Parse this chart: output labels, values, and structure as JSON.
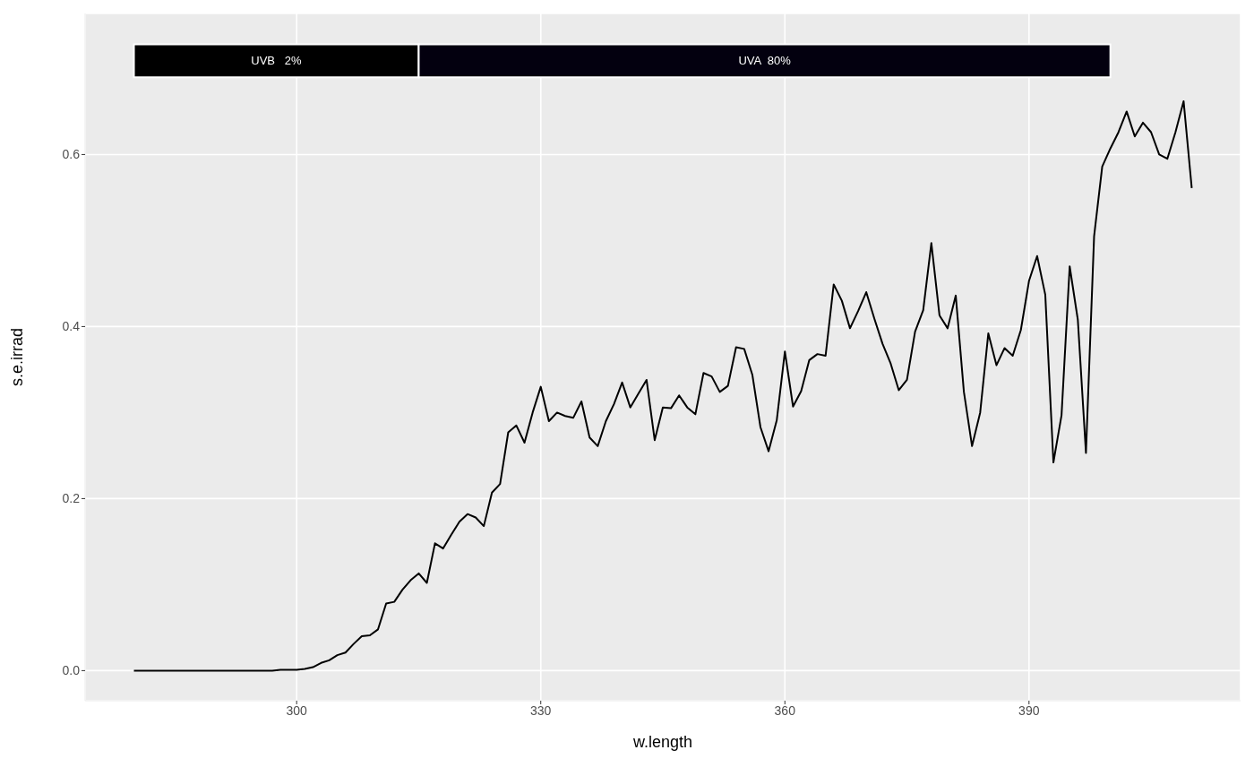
{
  "chart_data": {
    "type": "line",
    "xlabel": "w.length",
    "ylabel": "s.e.irrad",
    "x": [
      280,
      281,
      282,
      283,
      284,
      285,
      286,
      287,
      288,
      289,
      290,
      291,
      292,
      293,
      294,
      295,
      296,
      297,
      298,
      299,
      300,
      301,
      302,
      303,
      304,
      305,
      306,
      307,
      308,
      309,
      310,
      311,
      312,
      313,
      314,
      315,
      316,
      317,
      318,
      319,
      320,
      321,
      322,
      323,
      324,
      325,
      326,
      327,
      328,
      329,
      330,
      331,
      332,
      333,
      334,
      335,
      336,
      337,
      338,
      339,
      340,
      341,
      342,
      343,
      344,
      345,
      346,
      347,
      348,
      349,
      350,
      351,
      352,
      353,
      354,
      355,
      356,
      357,
      358,
      359,
      360,
      361,
      362,
      363,
      364,
      365,
      366,
      367,
      368,
      369,
      370,
      371,
      372,
      373,
      374,
      375,
      376,
      377,
      378,
      379,
      380,
      381,
      382,
      383,
      384,
      385,
      386,
      387,
      388,
      389,
      390,
      391,
      392,
      393,
      394,
      395,
      396,
      397,
      398,
      399,
      400,
      401,
      402,
      403,
      404,
      405,
      406,
      407,
      408,
      409,
      410
    ],
    "series": [
      {
        "color": "#000000",
        "values": [
          0,
          0,
          0,
          0,
          0,
          0,
          0,
          0,
          0,
          0,
          0,
          0,
          0,
          0,
          0,
          0,
          0,
          0,
          0.001,
          0.001,
          0.001,
          0.002,
          0.004,
          0.009,
          0.012,
          0.018,
          0.021,
          0.031,
          0.04,
          0.041,
          0.048,
          0.078,
          0.08,
          0.094,
          0.105,
          0.113,
          0.102,
          0.148,
          0.142,
          0.158,
          0.173,
          0.182,
          0.178,
          0.168,
          0.207,
          0.217,
          0.277,
          0.285,
          0.265,
          0.3,
          0.33,
          0.29,
          0.3,
          0.296,
          0.294,
          0.313,
          0.271,
          0.261,
          0.29,
          0.31,
          0.335,
          0.306,
          0.322,
          0.338,
          0.268,
          0.306,
          0.305,
          0.32,
          0.306,
          0.298,
          0.346,
          0.342,
          0.324,
          0.331,
          0.376,
          0.374,
          0.344,
          0.283,
          0.255,
          0.291,
          0.371,
          0.307,
          0.325,
          0.361,
          0.368,
          0.366,
          0.449,
          0.43,
          0.398,
          0.418,
          0.44,
          0.409,
          0.38,
          0.357,
          0.326,
          0.338,
          0.394,
          0.419,
          0.497,
          0.413,
          0.398,
          0.436,
          0.324,
          0.261,
          0.3,
          0.392,
          0.355,
          0.375,
          0.366,
          0.396,
          0.453,
          0.482,
          0.437,
          0.242,
          0.297,
          0.47,
          0.408,
          0.253,
          0.505,
          0.586,
          0.607,
          0.626,
          0.65,
          0.621,
          0.637,
          0.626,
          0.6,
          0.595,
          0.626,
          0.662,
          0.561
        ]
      }
    ],
    "xlim": [
      274,
      416
    ],
    "xticks": [
      300,
      330,
      360,
      390
    ],
    "ylim": [
      -0.035,
      0.764
    ],
    "yticks": [
      {
        "value": 0,
        "label": "0.0"
      },
      {
        "value": 0.2,
        "label": "0.2"
      },
      {
        "value": 0.4,
        "label": "0.4"
      },
      {
        "value": 0.6,
        "label": "0.6"
      }
    ],
    "grid": true,
    "legend": false,
    "line_style": "solid",
    "marker": "none",
    "bands": [
      {
        "axis": "x",
        "from": 280,
        "to": 315,
        "label": "UVB   2%",
        "color": "#000000"
      },
      {
        "axis": "x",
        "from": 315,
        "to": 400,
        "label": "UVA  80%",
        "color": "#03000f"
      }
    ]
  }
}
